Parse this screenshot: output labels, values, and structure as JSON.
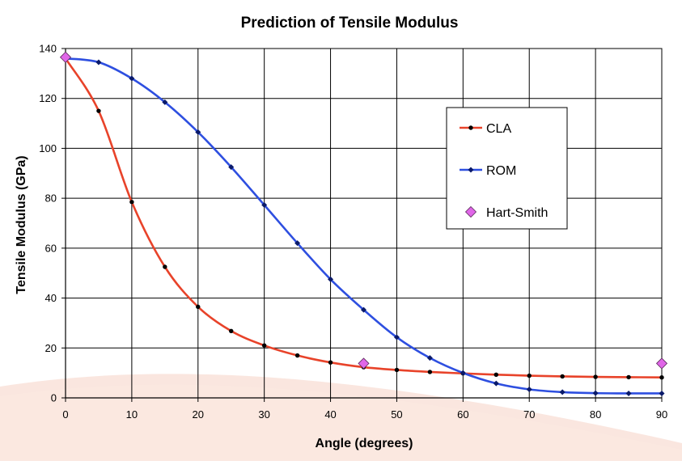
{
  "chart_data": {
    "type": "line",
    "title": "Prediction of Tensile Modulus",
    "xlabel": "Angle (degrees)",
    "ylabel": "Tensile Modulus (GPa)",
    "xlim": [
      0,
      90
    ],
    "ylim": [
      0,
      140
    ],
    "xticks": [
      0,
      10,
      20,
      30,
      40,
      50,
      60,
      70,
      80,
      90
    ],
    "yticks": [
      0,
      20,
      40,
      60,
      80,
      100,
      120,
      140
    ],
    "grid": true,
    "legend_position": "right",
    "series": [
      {
        "name": "CLA",
        "color": "#e8432a",
        "marker": "circle",
        "x": [
          0,
          5,
          10,
          15,
          20,
          25,
          30,
          35,
          40,
          45,
          50,
          55,
          60,
          65,
          70,
          75,
          80,
          85,
          90
        ],
        "y": [
          136,
          115,
          78.5,
          52.5,
          36.5,
          26.8,
          21,
          17,
          14.2,
          12.3,
          11.2,
          10.4,
          9.8,
          9.3,
          8.9,
          8.6,
          8.4,
          8.3,
          8.2
        ]
      },
      {
        "name": "ROM",
        "color": "#2e4fe0",
        "marker": "diamond",
        "x": [
          0,
          5,
          10,
          15,
          20,
          25,
          30,
          35,
          40,
          45,
          50,
          55,
          60,
          65,
          70,
          75,
          80,
          85,
          90
        ],
        "y": [
          136,
          134.5,
          128,
          118.5,
          106.5,
          92.5,
          77.3,
          62,
          47.5,
          35.3,
          24.3,
          16,
          10,
          5.8,
          3.4,
          2.3,
          1.9,
          1.8,
          1.8
        ]
      },
      {
        "name": "Hart-Smith",
        "color": "#e066e8",
        "marker": "diamond-large",
        "line": false,
        "x": [
          0,
          45,
          90
        ],
        "y": [
          136.5,
          13.8,
          13.8
        ]
      }
    ]
  }
}
